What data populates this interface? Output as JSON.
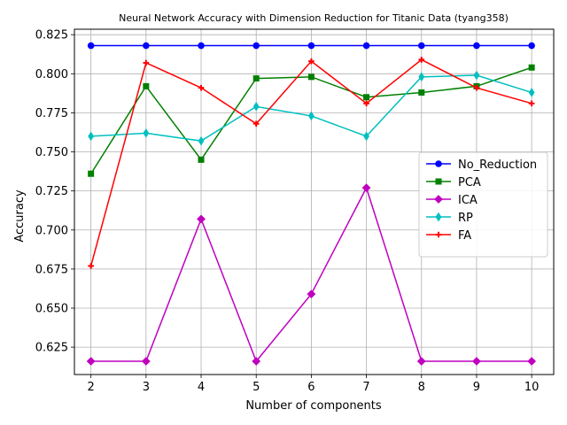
{
  "chart_data": {
    "type": "line",
    "title": "Neural Network Accuracy with Dimension Reduction for Titanic Data (tyang358)",
    "xlabel": "Number of components",
    "ylabel": "Accuracy",
    "x": [
      2,
      3,
      4,
      5,
      6,
      7,
      8,
      9,
      10
    ],
    "xlim": [
      1.7,
      10.4
    ],
    "ylim": [
      0.6075,
      0.8285
    ],
    "yticks": [
      0.625,
      0.65,
      0.675,
      0.7,
      0.725,
      0.75,
      0.775,
      0.8,
      0.825
    ],
    "ytick_labels": [
      "0.625",
      "0.650",
      "0.675",
      "0.700",
      "0.725",
      "0.750",
      "0.775",
      "0.800",
      "0.825"
    ],
    "grid": true,
    "legend_position": "center-right",
    "series": [
      {
        "name": "No_Reduction",
        "color": "#0000ff",
        "marker": "circle",
        "values": [
          0.818,
          0.818,
          0.818,
          0.818,
          0.818,
          0.818,
          0.818,
          0.818,
          0.818
        ]
      },
      {
        "name": "PCA",
        "color": "#008000",
        "marker": "square",
        "values": [
          0.736,
          0.792,
          0.745,
          0.797,
          0.798,
          0.785,
          0.788,
          0.792,
          0.804
        ]
      },
      {
        "name": "ICA",
        "color": "#bf00bf",
        "marker": "diamond",
        "values": [
          0.616,
          0.616,
          0.707,
          0.616,
          0.659,
          0.727,
          0.616,
          0.616,
          0.616
        ]
      },
      {
        "name": "RP",
        "color": "#00bfbf",
        "marker": "thin_diamond",
        "values": [
          0.76,
          0.762,
          0.757,
          0.779,
          0.773,
          0.76,
          0.798,
          0.799,
          0.788
        ]
      },
      {
        "name": "FA",
        "color": "#ff0000",
        "marker": "plus",
        "values": [
          0.677,
          0.807,
          0.791,
          0.768,
          0.808,
          0.781,
          0.809,
          0.791,
          0.781
        ]
      }
    ]
  }
}
